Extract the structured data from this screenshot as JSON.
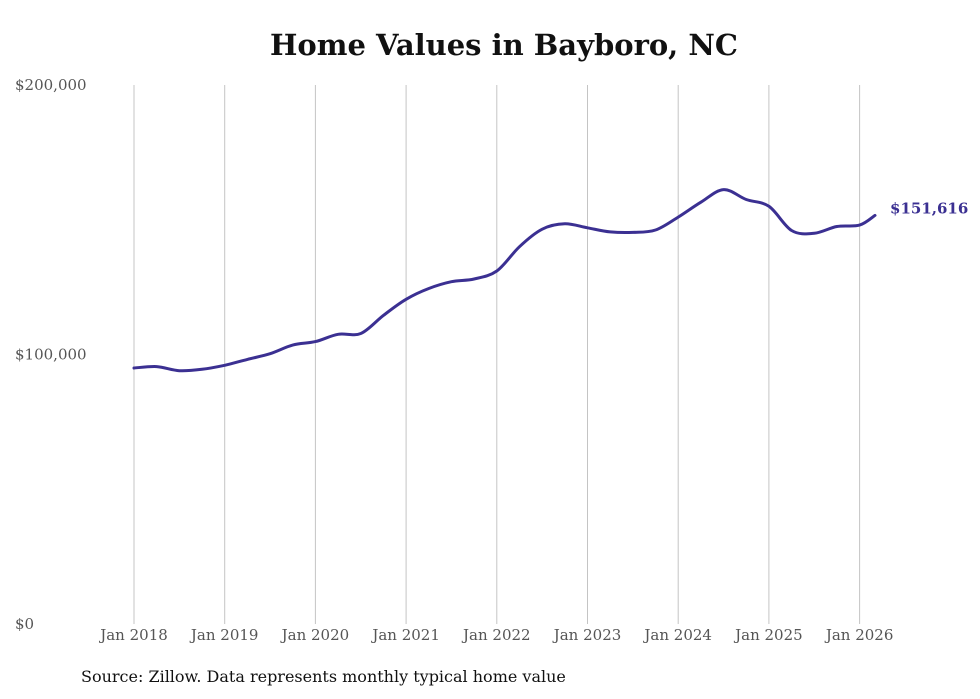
{
  "chart_data": {
    "type": "line",
    "title": "Home Values in Bayboro, NC",
    "source": "Source: Zillow. Data represents monthly typical home value",
    "ylim": [
      0,
      200000
    ],
    "yticks": [
      0,
      100000,
      200000
    ],
    "ytick_labels": [
      "$0",
      "$100,000",
      "$200,000"
    ],
    "xlim": [
      2018.0,
      2026.17
    ],
    "xticks": [
      2018,
      2019,
      2020,
      2021,
      2022,
      2023,
      2024,
      2025,
      2026
    ],
    "xtick_labels": [
      "Jan 2018",
      "Jan 2019",
      "Jan 2020",
      "Jan 2021",
      "Jan 2022",
      "Jan 2023",
      "Jan 2024",
      "Jan 2025",
      "Jan 2026"
    ],
    "grid": "vertical",
    "line_color": "#3b3092",
    "end_label": "$151,616",
    "series": [
      {
        "name": "Typical home value",
        "x": [
          2018.0,
          2018.25,
          2018.5,
          2018.75,
          2019.0,
          2019.25,
          2019.5,
          2019.75,
          2020.0,
          2020.25,
          2020.5,
          2020.75,
          2021.0,
          2021.25,
          2021.5,
          2021.75,
          2022.0,
          2022.25,
          2022.5,
          2022.75,
          2023.0,
          2023.25,
          2023.5,
          2023.75,
          2024.0,
          2024.25,
          2024.5,
          2024.75,
          2025.0,
          2025.25,
          2025.5,
          2025.75,
          2026.0,
          2026.17
        ],
        "values": [
          95000,
          95500,
          94000,
          94500,
          96000,
          98200,
          100300,
          103500,
          104800,
          107500,
          107800,
          114500,
          120500,
          124500,
          127000,
          128000,
          131000,
          140000,
          146500,
          148500,
          147000,
          145500,
          145300,
          146200,
          151000,
          156500,
          161200,
          157500,
          155000,
          146000,
          145000,
          147500,
          148000,
          151616
        ]
      }
    ]
  }
}
